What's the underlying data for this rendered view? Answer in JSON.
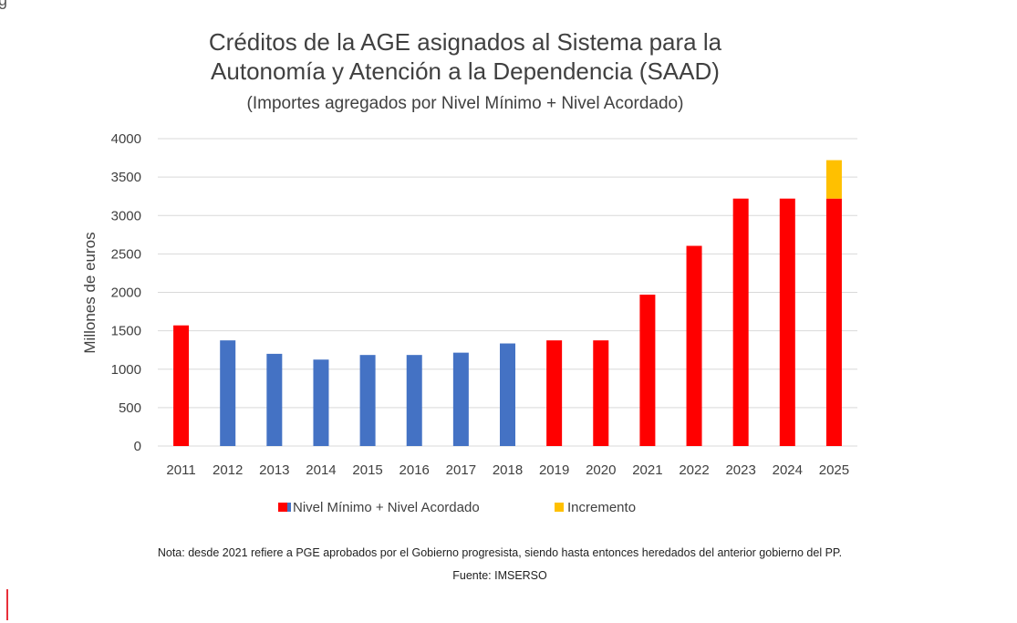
{
  "chart_data": {
    "type": "bar",
    "stacked": true,
    "title": [
      "Créditos de la AGE asignados al Sistema para la",
      "Autonomía y Atención a la Dependencia (SAAD)"
    ],
    "subtitle": "(Importes agregados por Nivel Mínimo + Nivel Acordado)",
    "xlabel": "",
    "ylabel": "Millones de euros",
    "ylim": [
      0,
      4000
    ],
    "yticks": [
      0,
      500,
      1000,
      1500,
      2000,
      2500,
      3000,
      3500,
      4000
    ],
    "grid": true,
    "categories": [
      "2011",
      "2012",
      "2013",
      "2014",
      "2015",
      "2016",
      "2017",
      "2018",
      "2019",
      "2020",
      "2021",
      "2022",
      "2023",
      "2024",
      "2025"
    ],
    "series": [
      {
        "name": "Nivel Mínimo + Nivel Acordado",
        "values": [
          1570,
          1375,
          1200,
          1125,
          1185,
          1185,
          1215,
          1335,
          1375,
          1375,
          1970,
          2605,
          3220,
          3220,
          3220
        ],
        "bar_colors": [
          "#ff0000",
          "#4472c4",
          "#4472c4",
          "#4472c4",
          "#4472c4",
          "#4472c4",
          "#4472c4",
          "#4472c4",
          "#ff0000",
          "#ff0000",
          "#ff0000",
          "#ff0000",
          "#ff0000",
          "#ff0000",
          "#ff0000"
        ]
      },
      {
        "name": "Incremento",
        "values": [
          0,
          0,
          0,
          0,
          0,
          0,
          0,
          0,
          0,
          0,
          0,
          0,
          0,
          0,
          500
        ],
        "color": "#ffc000"
      }
    ],
    "legend": {
      "placement": "bottom",
      "items": [
        {
          "label": "Nivel Mínimo + Nivel Acordado",
          "color": "#ff0000"
        },
        {
          "label": "Incremento",
          "color": "#ffc000"
        }
      ]
    }
  },
  "footnote": {
    "note": "Nota: desde 2021 refiere a PGE aprobados por el Gobierno progresista, siendo hasta entonces heredados del anterior gobierno del PP.",
    "source": "Fuente: IMSERSO"
  },
  "colors": {
    "grid": "#d9d9d9",
    "text": "#404040",
    "left_marker": "#e8303a",
    "top_fragment": "#555555"
  }
}
